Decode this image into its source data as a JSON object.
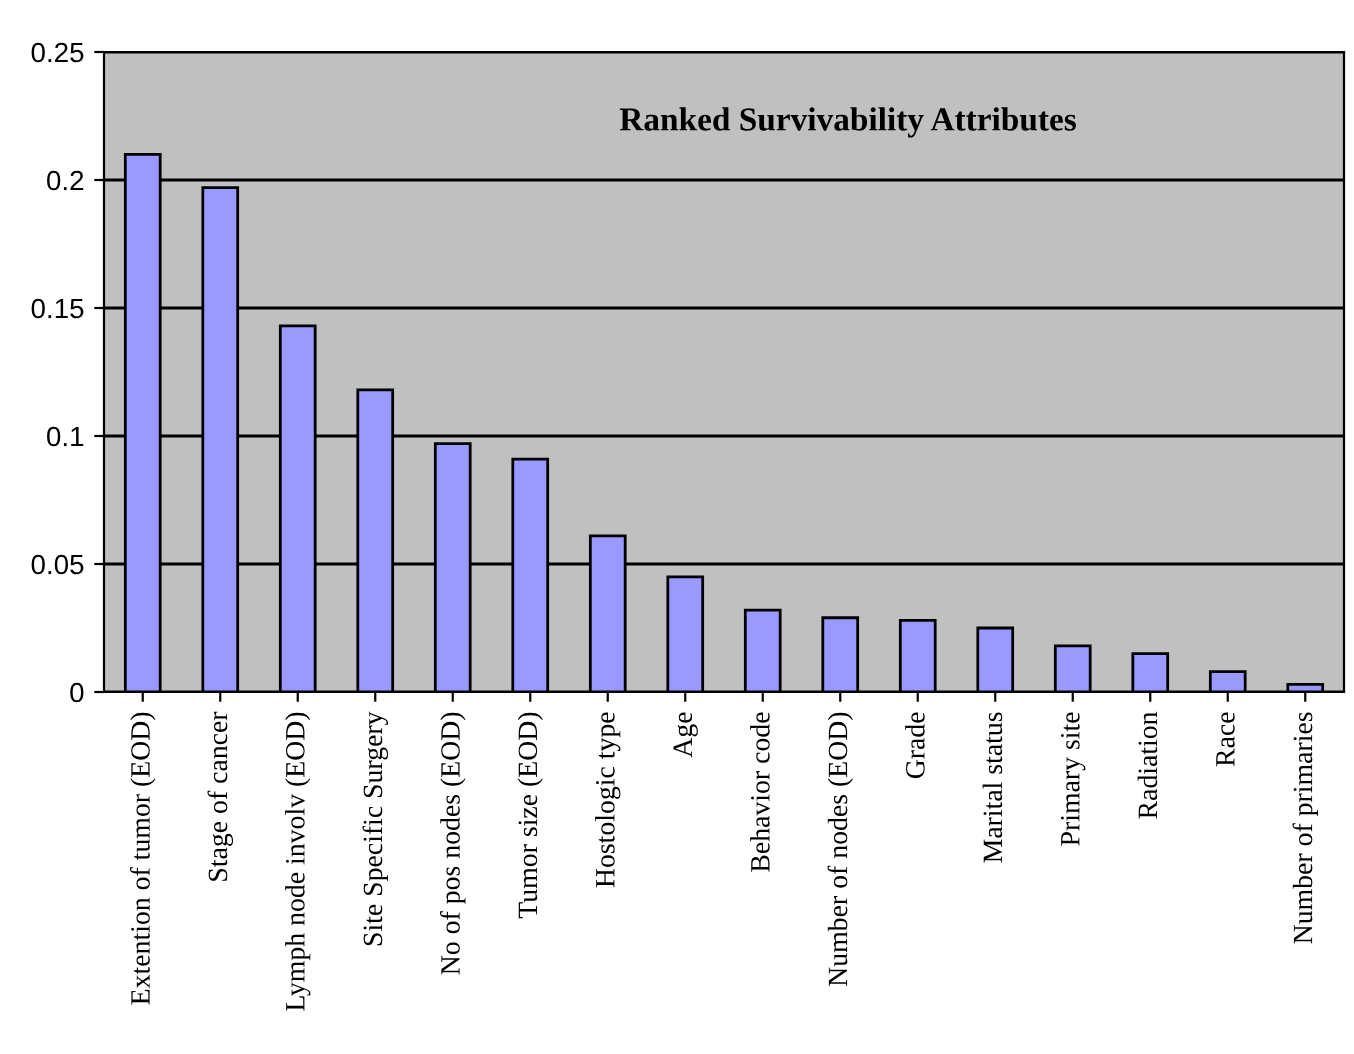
{
  "chart_data": {
    "type": "bar",
    "title": "Ranked Survivability Attributes",
    "categories": [
      "Extention of tumor (EOD)",
      "Stage of cancer",
      "Lymph node involv (EOD)",
      "Site Specific Surgery",
      "No of pos nodes (EOD)",
      "Tumor size (EOD)",
      "Hostologic type",
      "Age",
      "Behavior code",
      "Number of nodes (EOD)",
      "Grade",
      "Marital status",
      "Primary site",
      "Radiation",
      "Race",
      "Number of primaries"
    ],
    "values": [
      0.21,
      0.197,
      0.143,
      0.118,
      0.097,
      0.091,
      0.061,
      0.045,
      0.032,
      0.029,
      0.028,
      0.025,
      0.018,
      0.015,
      0.008,
      0.003
    ],
    "color": "#9999ff",
    "ylim": [
      0,
      0.25
    ],
    "yticks": [
      0,
      0.05,
      {
        "value": 0.1,
        "label": "0.1"
      },
      0.15,
      {
        "value": 0.2,
        "label": "0.2"
      },
      0.25
    ],
    "grid": "y",
    "legend": false
  }
}
